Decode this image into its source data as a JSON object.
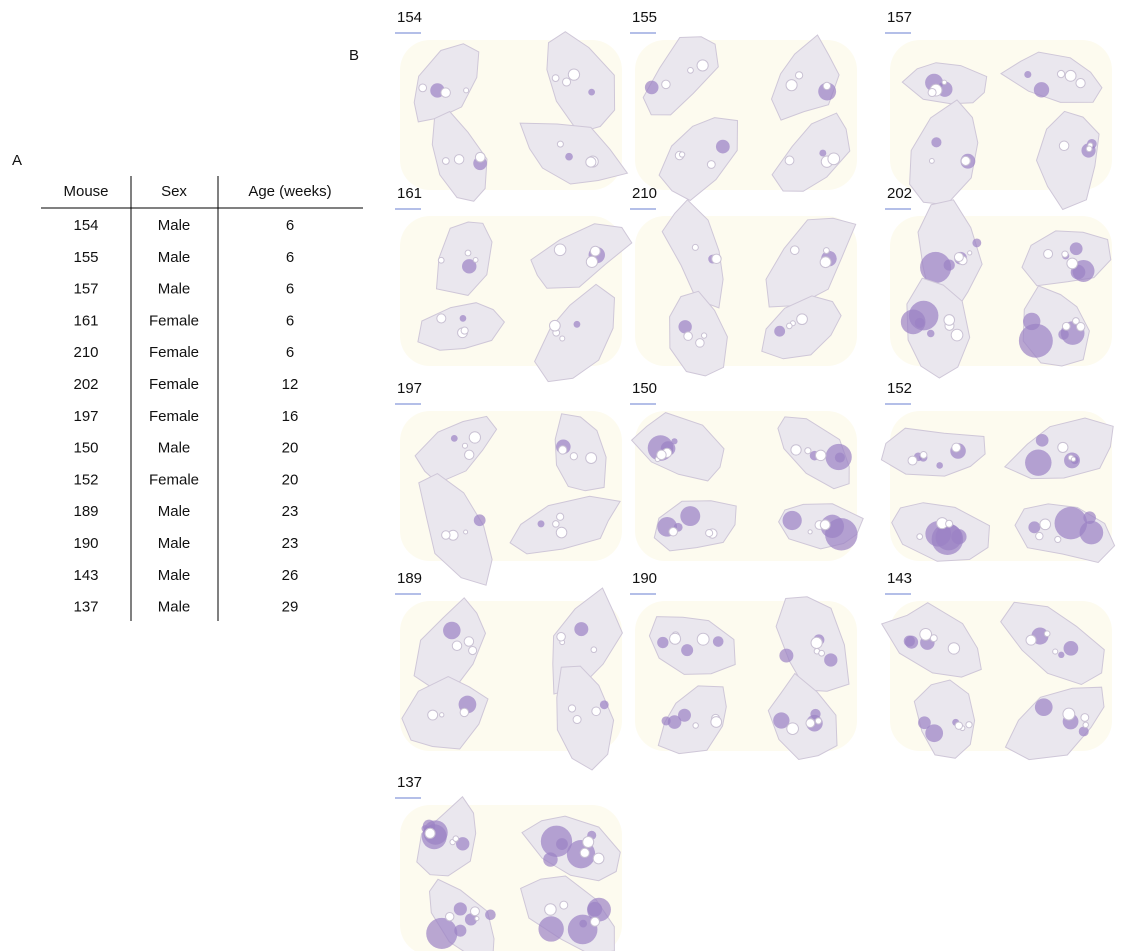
{
  "panel_a": {
    "label": "A",
    "table": {
      "headers": [
        "Mouse",
        "Sex",
        "Age (weeks)"
      ],
      "rows": [
        [
          "154",
          "Male",
          "6"
        ],
        [
          "155",
          "Male",
          "6"
        ],
        [
          "157",
          "Male",
          "6"
        ],
        [
          "161",
          "Female",
          "6"
        ],
        [
          "210",
          "Female",
          "6"
        ],
        [
          "202",
          "Female",
          "12"
        ],
        [
          "197",
          "Female",
          "16"
        ],
        [
          "150",
          "Male",
          "20"
        ],
        [
          "152",
          "Female",
          "20"
        ],
        [
          "189",
          "Male",
          "23"
        ],
        [
          "190",
          "Male",
          "23"
        ],
        [
          "143",
          "Male",
          "26"
        ],
        [
          "137",
          "Male",
          "29"
        ]
      ]
    }
  },
  "panel_b": {
    "label": "B",
    "images": [
      {
        "label": "154"
      },
      {
        "label": "155"
      },
      {
        "label": "157"
      },
      {
        "label": "161"
      },
      {
        "label": "210"
      },
      {
        "label": "202"
      },
      {
        "label": "197"
      },
      {
        "label": "150"
      },
      {
        "label": "152"
      },
      {
        "label": "189"
      },
      {
        "label": "190"
      },
      {
        "label": "143"
      },
      {
        "label": "137"
      }
    ]
  }
}
